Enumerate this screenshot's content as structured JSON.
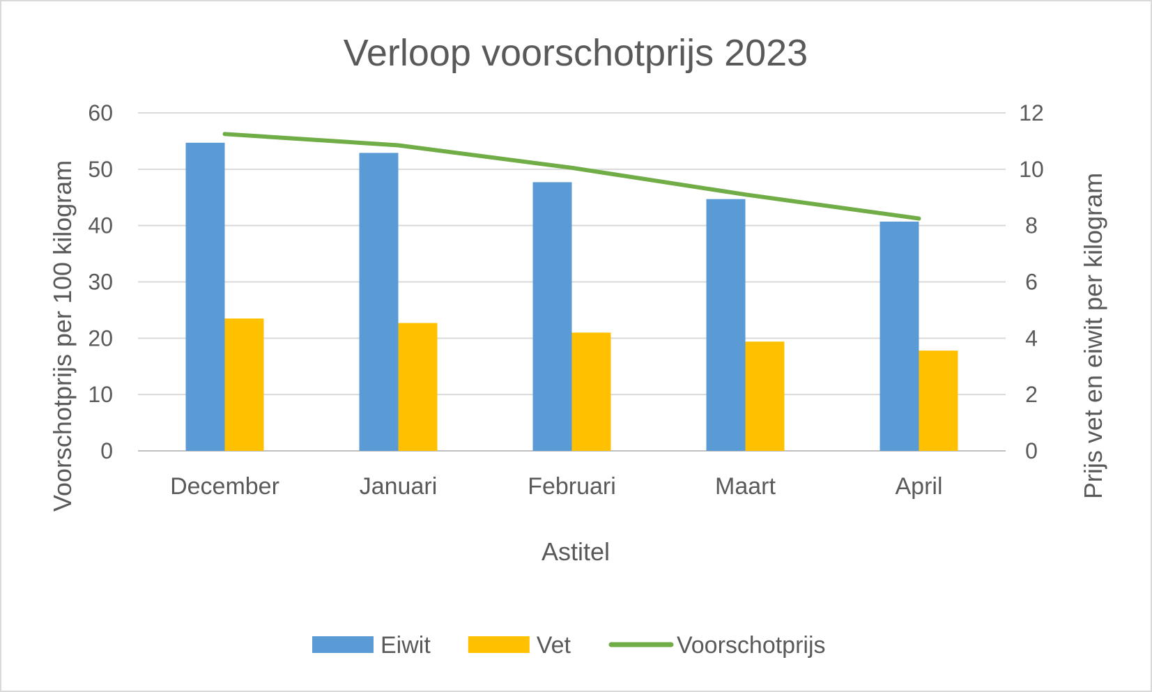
{
  "chart_data": {
    "type": "bar",
    "title": "Verloop voorschotprijs 2023",
    "categories": [
      "December",
      "Januari",
      "Februari",
      "Maart",
      "April"
    ],
    "xlabel": "Astitel",
    "ylabel": "Voorschotprijs per 100 kilogram",
    "y2label": "Prijs vet en eiwit per kilogram",
    "ylim": [
      0,
      60
    ],
    "y2lim": [
      0,
      12
    ],
    "yticks": [
      "0",
      "10",
      "20",
      "30",
      "40",
      "50",
      "60"
    ],
    "y2ticks": [
      "0",
      "2",
      "4",
      "6",
      "8",
      "10",
      "12"
    ],
    "grid": true,
    "legend": "bottom",
    "series": [
      {
        "name": "Eiwit",
        "type": "bar",
        "axis": "left",
        "color": "#5b9bd5",
        "values": [
          54.7,
          52.9,
          47.7,
          44.7,
          40.7
        ]
      },
      {
        "name": "Vet",
        "type": "bar",
        "axis": "left",
        "color": "#ffc000",
        "values": [
          23.5,
          22.7,
          21.0,
          19.4,
          17.8
        ]
      },
      {
        "name": "Voorschotprijs",
        "type": "line",
        "axis": "right",
        "color": "#70ad47",
        "values": [
          11.25,
          10.85,
          10.05,
          9.1,
          8.25
        ]
      }
    ]
  }
}
